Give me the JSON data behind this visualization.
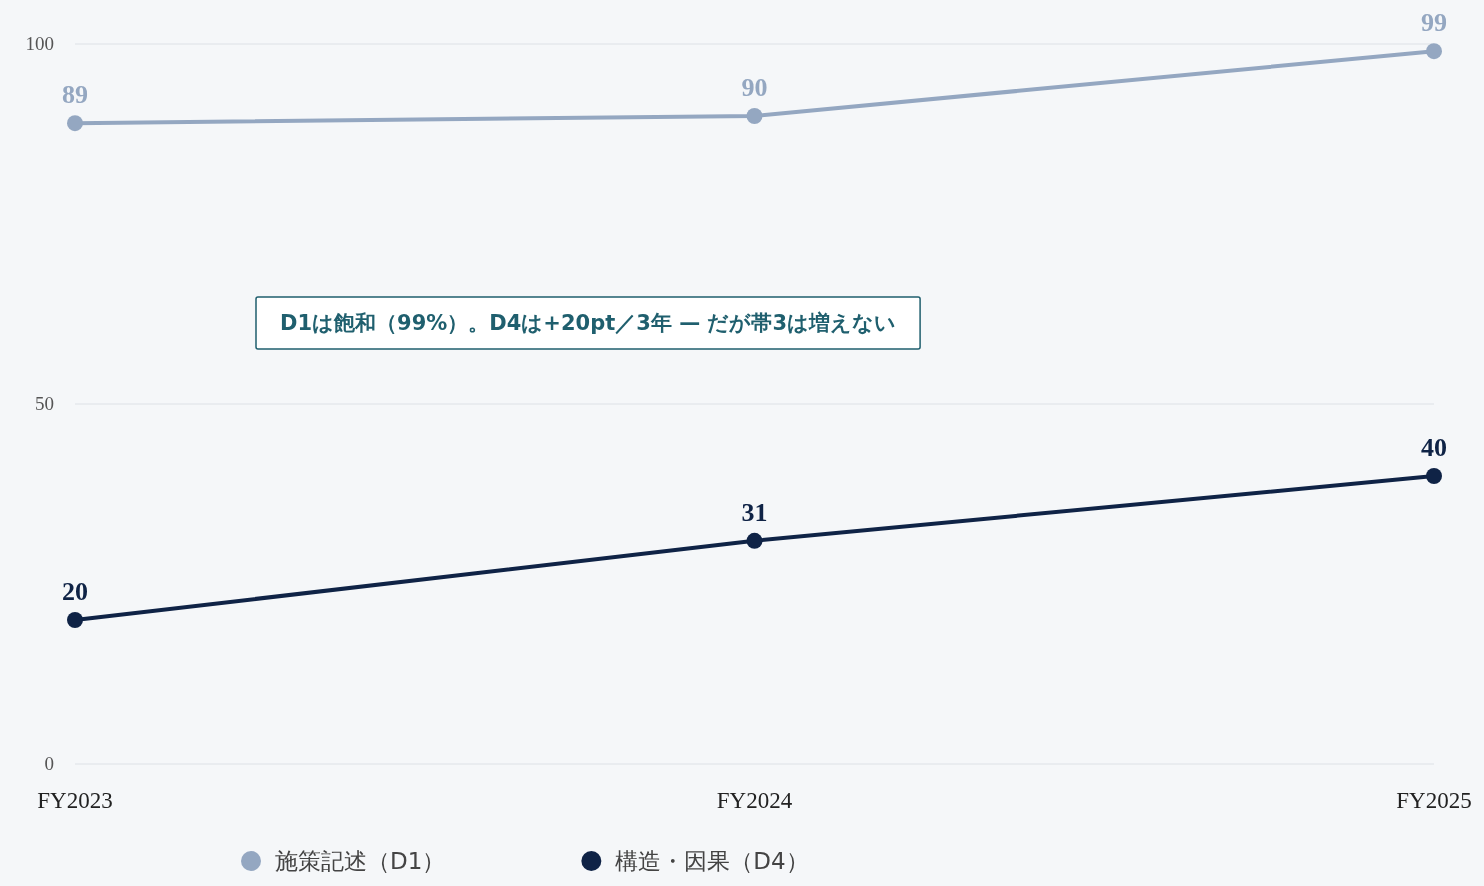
{
  "chart_data": {
    "type": "line",
    "categories": [
      "FY2023",
      "FY2024",
      "FY2025"
    ],
    "series": [
      {
        "name": "施策記述（D1）",
        "color": "#94a7c1",
        "values": [
          89,
          90,
          99
        ]
      },
      {
        "name": "構造・因果（D4）",
        "color": "#0f2346",
        "values": [
          20,
          31,
          40
        ]
      }
    ],
    "ylim": [
      0,
      100
    ],
    "yticks": [
      0,
      50,
      100
    ],
    "grid": "y",
    "legend": "bottom",
    "marker": "circle",
    "line_style": "solid",
    "data_labels": true,
    "annotations": [
      "D1は飽和（99%）。D4は+20pt／3年 — だが帯3は増えない"
    ]
  }
}
